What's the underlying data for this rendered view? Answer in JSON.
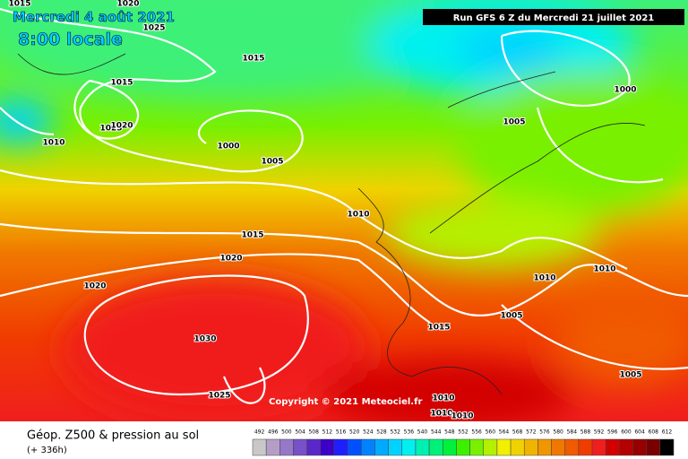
{
  "header": {
    "date": "Mercredi 4 août 2021",
    "time": "8:00 locale",
    "run": "Run GFS 6 Z du Mercredi 21 juillet 2021"
  },
  "isobar_labels": [
    1020,
    1025,
    1015,
    1015,
    1015,
    1025,
    1020,
    1010,
    1000,
    1005,
    1005,
    1000,
    1010,
    1015,
    1020,
    1020,
    1030,
    1025,
    1010,
    1005,
    1015,
    1010,
    1010,
    1005,
    1010,
    1010
  ],
  "copyright": "Copyright © 2021 Meteociel.fr",
  "footer": {
    "title": "Géop. Z500 & pression au sol",
    "lead": "(+ 336h)"
  },
  "legend": {
    "values": [
      492,
      496,
      500,
      504,
      508,
      512,
      516,
      520,
      524,
      528,
      532,
      536,
      540,
      544,
      548,
      552,
      556,
      560,
      564,
      568,
      572,
      576,
      580,
      584,
      588,
      592,
      596,
      600,
      604,
      608,
      612
    ],
    "colors": [
      "#c8c8c8",
      "#b49ec8",
      "#9678c8",
      "#7850c8",
      "#5a28c8",
      "#3c00c8",
      "#1e1eff",
      "#0050ff",
      "#0082ff",
      "#00aaff",
      "#00d2ff",
      "#00f0f0",
      "#00f0b4",
      "#00f078",
      "#00f03c",
      "#3cf000",
      "#78f000",
      "#b4f000",
      "#f0f000",
      "#f0d200",
      "#f0b400",
      "#f09600",
      "#f07800",
      "#f05a00",
      "#f03c00",
      "#f01e1e",
      "#d20000",
      "#b40000",
      "#960000",
      "#780000",
      "#000000"
    ]
  }
}
